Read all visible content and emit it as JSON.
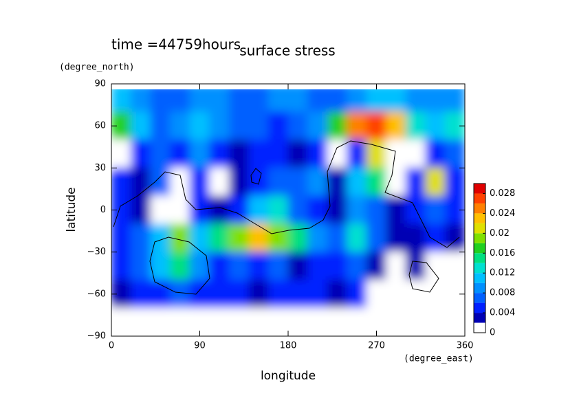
{
  "chart_data": {
    "type": "contour",
    "title": "surface stress",
    "subtitle": "time =44759hours",
    "x_label": "longitude",
    "x_unit": "(degree_east)",
    "y_label": "latitude",
    "y_unit": "(degree_north)",
    "xlim": [
      0,
      360
    ],
    "ylim": [
      -90,
      90
    ],
    "xticks": [
      0,
      90,
      180,
      270,
      360
    ],
    "yticks": [
      {
        "value": -90,
        "label": "−90"
      },
      {
        "value": -60,
        "label": "−60"
      },
      {
        "value": -30,
        "label": "−30"
      },
      0,
      30,
      60,
      90
    ],
    "x": [
      10,
      30,
      50,
      70,
      90,
      110,
      130,
      150,
      170,
      190,
      210,
      230,
      250,
      270,
      290,
      310,
      330,
      350
    ],
    "y": [
      80,
      60,
      40,
      20,
      0,
      -20,
      -40,
      -60,
      -80
    ],
    "z": [
      [
        0.01,
        0.008,
        0.006,
        0.006,
        0.008,
        0.008,
        0.006,
        0.006,
        0.008,
        0.008,
        0.006,
        0.006,
        0.008,
        0.01,
        0.01,
        0.008,
        0.008,
        0.008
      ],
      [
        0.016,
        0.01,
        0.006,
        0.008,
        0.01,
        0.008,
        0.006,
        0.006,
        0.004,
        0.006,
        0.008,
        0.016,
        0.024,
        0.026,
        0.022,
        0.012,
        0.01,
        0.012
      ],
      [
        0,
        0.004,
        0.006,
        0.004,
        0.008,
        0.004,
        0.002,
        0.004,
        0.004,
        0.002,
        0.004,
        0,
        0.004,
        0.02,
        0,
        0,
        0.004,
        0.006
      ],
      [
        0.004,
        0.002,
        0.006,
        0,
        0.004,
        0,
        0.002,
        0.004,
        0.006,
        0.006,
        0.008,
        0.002,
        0.01,
        0.014,
        0,
        0.004,
        0.02,
        0.004
      ],
      [
        0.004,
        0.002,
        0,
        0,
        0.004,
        0.002,
        0.004,
        0.01,
        0.012,
        0.006,
        0.004,
        0.002,
        0.008,
        0.006,
        0.002,
        0.004,
        0.006,
        0.004
      ],
      [
        0.004,
        0.006,
        0.01,
        0.018,
        0.01,
        0.014,
        0.018,
        0.022,
        0.018,
        0.014,
        0.008,
        0.006,
        0.012,
        0.006,
        0.002,
        0.002,
        0.004,
        0.002
      ],
      [
        0.004,
        0.006,
        0.01,
        0.014,
        0.008,
        0.004,
        0.006,
        0.004,
        0.006,
        0.002,
        0.004,
        0.004,
        0.006,
        0.002,
        0,
        0.002,
        0,
        0
      ],
      [
        0.002,
        0.004,
        0.004,
        0.006,
        0.004,
        0.004,
        0.004,
        0.002,
        0.004,
        0.004,
        0.004,
        0.002,
        0.004,
        0,
        0,
        0,
        0,
        0
      ],
      [
        0,
        0,
        0,
        0,
        0,
        0,
        0,
        0,
        0,
        0,
        0,
        0,
        0,
        0,
        0,
        0,
        0,
        0
      ]
    ],
    "clim": [
      0,
      0.03
    ],
    "levels": [
      0,
      0.002,
      0.004,
      0.006,
      0.008,
      0.01,
      0.012,
      0.014,
      0.016,
      0.018,
      0.02,
      0.022,
      0.024,
      0.026,
      0.028
    ],
    "colors": [
      "#ffffff",
      "#0000b4",
      "#0020ff",
      "#0060ff",
      "#0090ff",
      "#00c0ff",
      "#00e0d0",
      "#00e080",
      "#20d020",
      "#80e000",
      "#e0e000",
      "#ffc000",
      "#ff8000",
      "#ff4000",
      "#e00000"
    ],
    "colorbar_ticks": [
      0,
      0.004,
      0.008,
      0.012,
      0.016,
      0.02,
      0.024,
      0.028
    ]
  }
}
